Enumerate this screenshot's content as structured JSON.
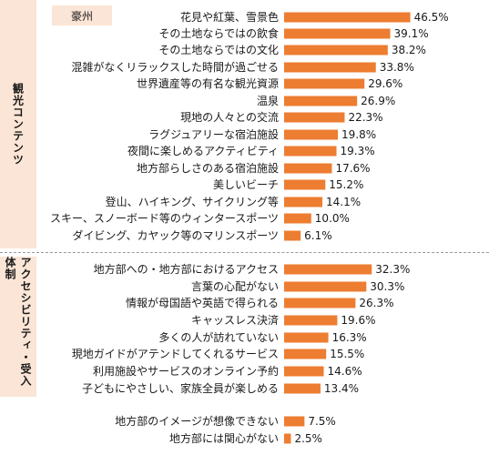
{
  "colors": {
    "bar": "#ed7d31",
    "side_bg": "#fbe5d6",
    "text": "#1a1a1a"
  },
  "sections": {
    "tourism": {
      "label": "観光コンテンツ"
    },
    "access": {
      "label": "アクセシビリティ・受入体制"
    }
  },
  "chart_data": {
    "type": "bar",
    "orientation": "horizontal",
    "series": [
      {
        "name": "豪州",
        "color": "#ed7d31"
      }
    ],
    "categories": [
      "花見や紅葉、雪景色",
      "その土地ならではの飲食",
      "その土地ならではの文化",
      "混雑がなくリラックスした時間が過ごせる",
      "世界遺産等の有名な観光資源",
      "温泉",
      "現地の人々との交流",
      "ラグジュアリーな宿泊施設",
      "夜間に楽しめるアクティビティ",
      "地方部らしさのある宿泊施設",
      "美しいビーチ",
      "登山、ハイキング、サイクリング等",
      "スキー、スノーボード等のウィンタースポーツ",
      "ダイビング、カヤック等のマリンスポーツ",
      "地方部への・地方部におけるアクセス",
      "言葉の心配がない",
      "情報が母国語や英語で得られる",
      "キャッスレス決済",
      "多くの人が訪れていない",
      "現地ガイドがアテンドしてくれるサービス",
      "利用施設やサービスのオンライン予約",
      "子どもにやさしい、家族全員が楽しめる",
      "地方部のイメージが想像できない",
      "地方部には関心がない"
    ],
    "values": [
      46.5,
      39.1,
      38.2,
      33.8,
      29.6,
      26.9,
      22.3,
      19.8,
      19.3,
      17.6,
      15.2,
      14.1,
      10.0,
      6.1,
      32.3,
      30.3,
      26.3,
      19.6,
      16.3,
      15.5,
      14.6,
      13.4,
      7.5,
      2.5
    ],
    "value_labels": [
      "46.5%",
      "39.1%",
      "38.2%",
      "33.8%",
      "29.6%",
      "26.9%",
      "22.3%",
      "19.8%",
      "19.3%",
      "17.6%",
      "15.2%",
      "14.1%",
      "10.0%",
      "6.1%",
      "32.3%",
      "30.3%",
      "26.3%",
      "19.6%",
      "16.3%",
      "15.5%",
      "14.6%",
      "13.4%",
      "7.5%",
      "2.5%"
    ],
    "groups": [
      {
        "name": "観光コンテンツ",
        "count": 14
      },
      {
        "name": "アクセシビリティ・受入体制",
        "count": 8
      },
      {
        "name": "",
        "count": 2
      }
    ],
    "unit": "%",
    "legend": "top-left",
    "grid": false
  }
}
